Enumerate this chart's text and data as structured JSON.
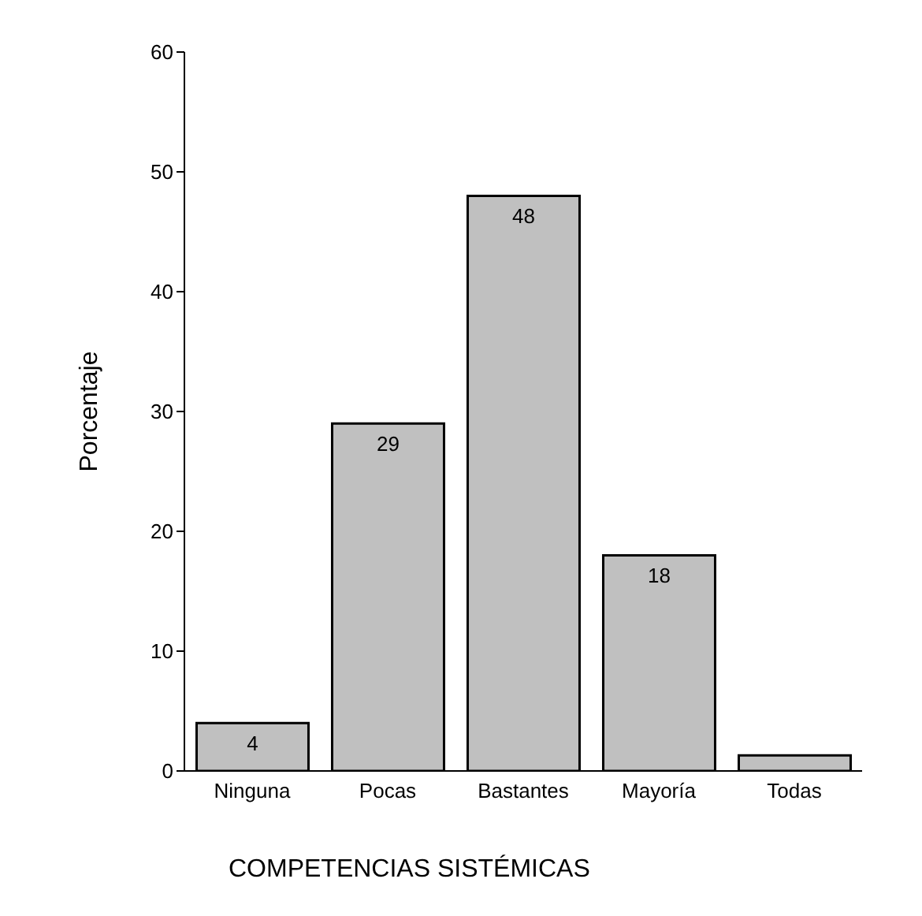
{
  "chart_data": {
    "type": "bar",
    "xlabel": "COMPETENCIAS SISTÉMICAS",
    "ylabel": "Porcentaje",
    "categories": [
      "Ninguna",
      "Pocas",
      "Bastantes",
      "Mayoría",
      "Todas"
    ],
    "values": [
      4,
      29,
      48,
      18,
      1.3
    ],
    "value_labels": [
      "4",
      "29",
      "48",
      "18",
      null
    ],
    "color": "#c0c0c0",
    "ylim": [
      0,
      60
    ],
    "yticks": [
      0,
      10,
      20,
      30,
      40,
      50,
      60
    ],
    "grid": false
  }
}
